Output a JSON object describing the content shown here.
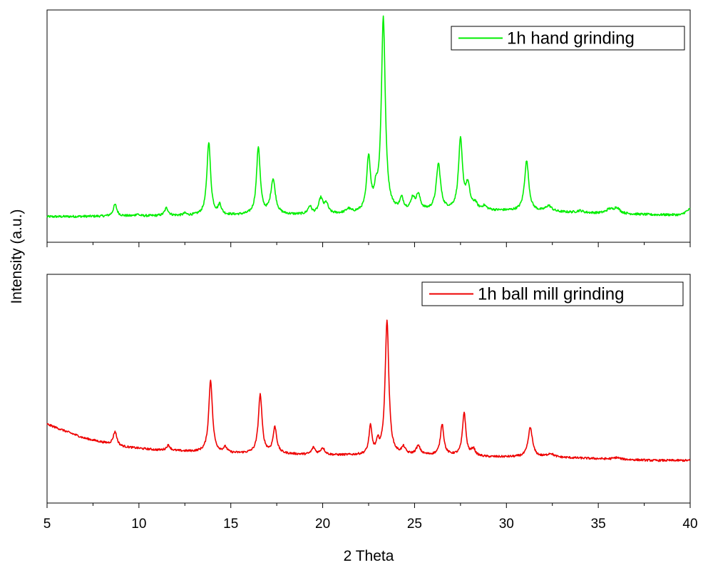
{
  "chart_data": {
    "type": "line",
    "layout": "two vertically stacked panels sharing the x-axis",
    "xlabel": "2 Theta",
    "ylabel": "Intensity (a.u.)",
    "xlim": [
      5,
      40
    ],
    "x_ticks": [
      5,
      10,
      15,
      20,
      25,
      30,
      35,
      40
    ],
    "x_minor_step": 2.5,
    "grid": false,
    "y_tick_labels": false,
    "panels": [
      {
        "legend": {
          "label": "1h hand grinding",
          "placement": "top-right",
          "color": "#00ee00"
        },
        "series": {
          "name": "1h hand grinding",
          "color": "#00ee00",
          "baseline": [
            [
              5,
              0.04
            ],
            [
              20,
              0.05
            ],
            [
              23,
              0.06
            ],
            [
              27,
              0.07
            ],
            [
              30,
              0.07
            ],
            [
              38,
              0.05
            ],
            [
              39.5,
              0.05
            ],
            [
              40,
              0.08
            ]
          ],
          "peaks": [
            [
              8.7,
              0.06,
              0.12
            ],
            [
              9.9,
              0.01,
              0.1
            ],
            [
              11.5,
              0.04,
              0.12
            ],
            [
              12.5,
              0.01,
              0.1
            ],
            [
              13.8,
              0.38,
              0.12
            ],
            [
              14.4,
              0.05,
              0.1
            ],
            [
              16.5,
              0.35,
              0.12
            ],
            [
              17.3,
              0.18,
              0.15
            ],
            [
              19.3,
              0.04,
              0.12
            ],
            [
              19.9,
              0.08,
              0.14
            ],
            [
              20.2,
              0.05,
              0.12
            ],
            [
              21.4,
              0.02,
              0.15
            ],
            [
              22.5,
              0.28,
              0.12
            ],
            [
              22.9,
              0.08,
              0.1
            ],
            [
              23.3,
              1.0,
              0.13
            ],
            [
              24.3,
              0.06,
              0.12
            ],
            [
              24.9,
              0.06,
              0.12
            ],
            [
              25.2,
              0.08,
              0.14
            ],
            [
              26.3,
              0.24,
              0.14
            ],
            [
              27.5,
              0.36,
              0.13
            ],
            [
              27.9,
              0.12,
              0.14
            ],
            [
              28.3,
              0.03,
              0.12
            ],
            [
              28.8,
              0.02,
              0.15
            ],
            [
              31.1,
              0.26,
              0.14
            ],
            [
              32.3,
              0.03,
              0.2
            ],
            [
              34,
              0.01,
              0.2
            ],
            [
              35.6,
              0.02,
              0.2
            ],
            [
              36,
              0.03,
              0.2
            ]
          ]
        }
      },
      {
        "legend": {
          "label": "1h ball mill grinding",
          "placement": "top-right",
          "color": "#ee0000"
        },
        "series": {
          "name": "1h ball mill grinding",
          "color": "#ee0000",
          "baseline": [
            [
              5,
              0.3
            ],
            [
              7,
              0.22
            ],
            [
              9,
              0.17
            ],
            [
              11,
              0.15
            ],
            [
              13,
              0.14
            ],
            [
              15,
              0.13
            ],
            [
              17,
              0.13
            ],
            [
              20,
              0.12
            ],
            [
              22,
              0.12
            ],
            [
              25,
              0.12
            ],
            [
              27,
              0.12
            ],
            [
              29,
              0.11
            ],
            [
              32,
              0.11
            ],
            [
              35,
              0.1
            ],
            [
              38,
              0.09
            ],
            [
              40,
              0.09
            ]
          ],
          "peaks": [
            [
              8.7,
              0.08,
              0.12
            ],
            [
              11.6,
              0.03,
              0.12
            ],
            [
              13.9,
              0.42,
              0.12
            ],
            [
              14.7,
              0.03,
              0.12
            ],
            [
              16.6,
              0.34,
              0.12
            ],
            [
              17.4,
              0.15,
              0.12
            ],
            [
              19.5,
              0.04,
              0.12
            ],
            [
              20.0,
              0.04,
              0.14
            ],
            [
              22.6,
              0.16,
              0.1
            ],
            [
              23.0,
              0.06,
              0.1
            ],
            [
              23.5,
              0.78,
              0.12
            ],
            [
              24.4,
              0.04,
              0.12
            ],
            [
              25.2,
              0.05,
              0.14
            ],
            [
              26.5,
              0.18,
              0.11
            ],
            [
              27.7,
              0.25,
              0.11
            ],
            [
              28.2,
              0.04,
              0.12
            ],
            [
              31.3,
              0.17,
              0.14
            ],
            [
              32.4,
              0.02,
              0.2
            ],
            [
              36,
              0.01,
              0.2
            ]
          ]
        }
      }
    ]
  }
}
